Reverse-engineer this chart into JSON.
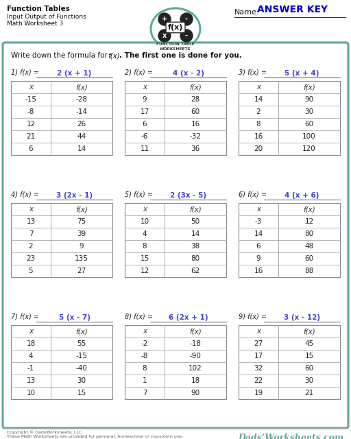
{
  "title_left": [
    "Function Tables",
    "Input Output of Functions",
    "Math Worksheet 3"
  ],
  "name_label": "Name:",
  "answer_key": "ANSWER KEY",
  "problems": [
    {
      "num": "1)",
      "formula": "2 (x + 1)",
      "rows": [
        [
          "x",
          "f(x)"
        ],
        [
          -15,
          -28
        ],
        [
          -8,
          -14
        ],
        [
          12,
          26
        ],
        [
          21,
          44
        ],
        [
          6,
          14
        ]
      ]
    },
    {
      "num": "2)",
      "formula": "4 (x - 2)",
      "rows": [
        [
          "x",
          "f(x)"
        ],
        [
          9,
          28
        ],
        [
          17,
          60
        ],
        [
          6,
          16
        ],
        [
          -6,
          -32
        ],
        [
          11,
          36
        ]
      ]
    },
    {
      "num": "3)",
      "formula": "5 (x + 4)",
      "rows": [
        [
          "x",
          "f(x)"
        ],
        [
          14,
          90
        ],
        [
          2,
          30
        ],
        [
          8,
          60
        ],
        [
          16,
          100
        ],
        [
          20,
          120
        ]
      ]
    },
    {
      "num": "4)",
      "formula": "3 (2x - 1)",
      "rows": [
        [
          "x",
          "f(x)"
        ],
        [
          13,
          75
        ],
        [
          7,
          39
        ],
        [
          2,
          9
        ],
        [
          23,
          135
        ],
        [
          5,
          27
        ]
      ]
    },
    {
      "num": "5)",
      "formula": "2 (3x - 5)",
      "rows": [
        [
          "x",
          "f(x)"
        ],
        [
          10,
          50
        ],
        [
          4,
          14
        ],
        [
          8,
          38
        ],
        [
          15,
          80
        ],
        [
          12,
          62
        ]
      ]
    },
    {
      "num": "6)",
      "formula": "4 (x + 6)",
      "rows": [
        [
          "x",
          "f(x)"
        ],
        [
          -3,
          12
        ],
        [
          14,
          80
        ],
        [
          6,
          48
        ],
        [
          9,
          60
        ],
        [
          16,
          88
        ]
      ]
    },
    {
      "num": "7)",
      "formula": "5 (x - 7)",
      "rows": [
        [
          "x",
          "f(x)"
        ],
        [
          18,
          55
        ],
        [
          4,
          -15
        ],
        [
          -1,
          -40
        ],
        [
          13,
          30
        ],
        [
          10,
          15
        ]
      ]
    },
    {
      "num": "8)",
      "formula": "6 (2x + 1)",
      "rows": [
        [
          "x",
          "f(x)"
        ],
        [
          -2,
          -18
        ],
        [
          -8,
          -90
        ],
        [
          8,
          102
        ],
        [
          1,
          18
        ],
        [
          7,
          90
        ]
      ]
    },
    {
      "num": "9)",
      "formula": "3 (x - 12)",
      "rows": [
        [
          "x",
          "f(x)"
        ],
        [
          27,
          45
        ],
        [
          17,
          15
        ],
        [
          32,
          60
        ],
        [
          22,
          30
        ],
        [
          19,
          21
        ]
      ]
    }
  ],
  "border_color": "#5fa89a",
  "formula_color": "#4444cc",
  "bg_color": "#ffffff",
  "footer_line1": "Copyright © DadsWorksheets, LLC",
  "footer_line2": "These Math Worksheets are provided for personal, homeschool or classroom use.",
  "watermark": "Dads’Worksheets.com"
}
